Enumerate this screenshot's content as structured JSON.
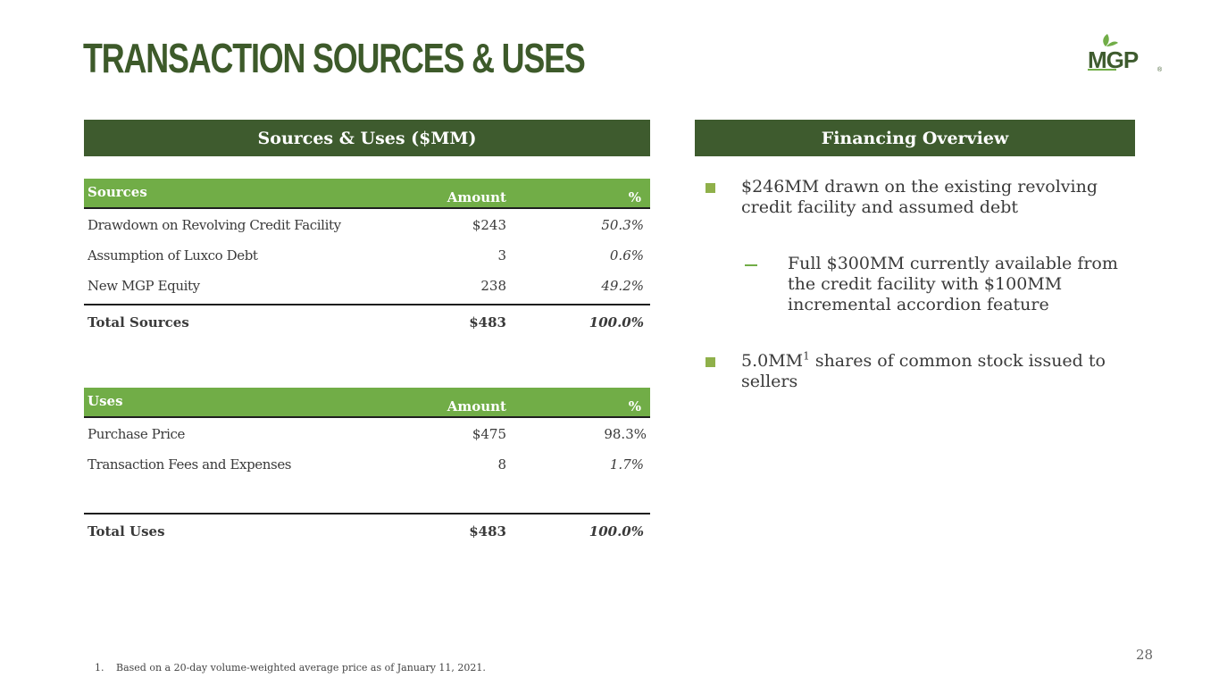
{
  "title": "TRANSACTION SOURCES & USES",
  "logo": {
    "text": "MGP",
    "mark": "®",
    "leaf_color": "#71ad47",
    "text_color": "#3e5b2e"
  },
  "left_panel": {
    "header": "Sources & Uses ($MM)"
  },
  "right_panel": {
    "header": "Financing Overview"
  },
  "sources": {
    "columns": [
      "Sources",
      "Amount",
      "%"
    ],
    "rows": [
      {
        "label": "Drawdown on Revolving Credit Facility",
        "amount": "$243",
        "pct": "50.3%"
      },
      {
        "label": "Assumption of Luxco Debt",
        "amount": "3",
        "pct": "0.6%"
      },
      {
        "label": "New MGP Equity",
        "amount": "238",
        "pct": "49.2%"
      }
    ],
    "total": {
      "label": "Total Sources",
      "amount": "$483",
      "pct": "100.0%"
    }
  },
  "uses": {
    "columns": [
      "Uses",
      "Amount",
      "%"
    ],
    "rows": [
      {
        "label": "Purchase Price",
        "amount": "$475",
        "pct": "98.3%"
      },
      {
        "label": "Transaction Fees and Expenses",
        "amount": "8",
        "pct": "1.7%"
      }
    ],
    "total": {
      "label": "Total Uses",
      "amount": "$483",
      "pct": "100.0%"
    }
  },
  "financing": {
    "bullet1": "$246MM drawn on the existing revolving credit facility and assumed debt",
    "sub_bullet": "Full $300MM currently available from the credit facility with $100MM incremental accordion feature",
    "bullet2_pre": "5.0MM",
    "bullet2_sup": "1",
    "bullet2_post": " shares of common stock issued to sellers"
  },
  "footnote": {
    "num": "1.",
    "text": "Based on a 20-day volume-weighted average price as of January 11, 2021."
  },
  "page_number": "28",
  "colors": {
    "dark_green": "#3e5b2e",
    "light_green": "#71ad47",
    "title_green": "#3d5a2a"
  }
}
